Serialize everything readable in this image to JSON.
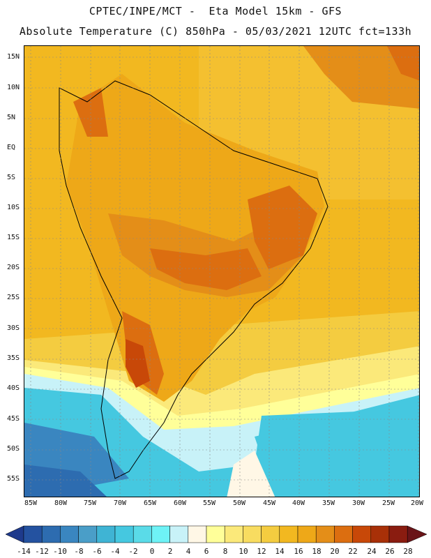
{
  "header": {
    "line1": "CPTEC/INPE/MCT -  Eta Model 15km - GFS",
    "line2": "Absolute Temperature (C) 850hPa - 05/03/2021 12UTC fct=133h"
  },
  "map": {
    "lat_labels": [
      "15N",
      "10N",
      "5N",
      "EQ",
      "5S",
      "10S",
      "15S",
      "20S",
      "25S",
      "30S",
      "35S",
      "40S",
      "45S",
      "50S",
      "55S"
    ],
    "lon_labels": [
      "85W",
      "80W",
      "75W",
      "70W",
      "65W",
      "60W",
      "55W",
      "50W",
      "45W",
      "40W",
      "35W",
      "30W",
      "25W",
      "20W"
    ]
  },
  "colorbar": {
    "labels": [
      "-14",
      "-12",
      "-10",
      "-8",
      "-6",
      "-4",
      "-2",
      "0",
      "2",
      "4",
      "6",
      "8",
      "10",
      "12",
      "14",
      "16",
      "18",
      "20",
      "22",
      "24",
      "26",
      "28"
    ],
    "colors": [
      "#1e3a8c",
      "#2452a0",
      "#2d6cb0",
      "#3a86c0",
      "#4a9ec8",
      "#3fb4d4",
      "#45c8e0",
      "#5adbe8",
      "#6ef2f6",
      "#c8f2f8",
      "#fff7e6",
      "#ffff99",
      "#fbe97a",
      "#f8dc60",
      "#f4cc40",
      "#f2b820",
      "#eea818",
      "#e48e18",
      "#dc6e10",
      "#c84808",
      "#a83008",
      "#8a1c10",
      "#6a1418"
    ]
  }
}
